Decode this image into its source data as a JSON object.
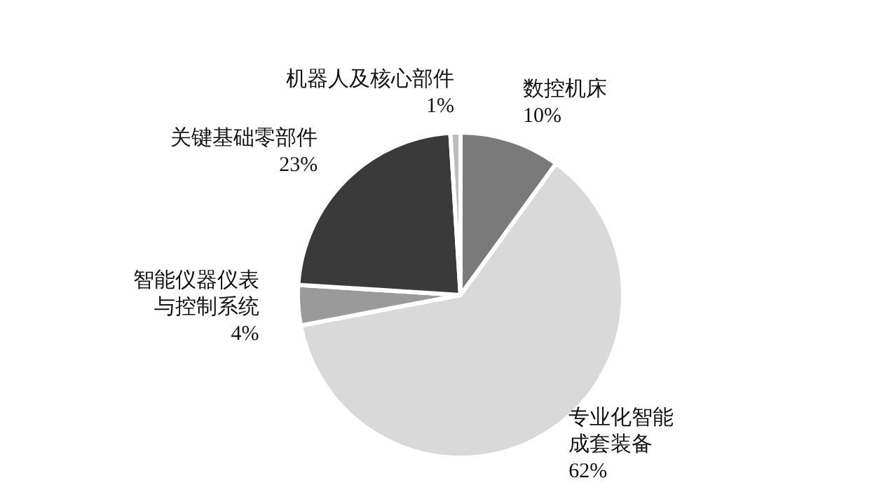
{
  "chart_data": {
    "type": "pie",
    "categories": [
      "数控机床",
      "专业化智能成套装备",
      "智能仪器仪表与控制系统",
      "关键基础零部件",
      "机器人及核心部件"
    ],
    "values": [
      10,
      62,
      4,
      23,
      1
    ],
    "value_labels": [
      "10%",
      "62%",
      "4%",
      "23%",
      "1%"
    ],
    "colors": [
      "#7a7a7a",
      "#d9d9d9",
      "#9a9a9a",
      "#3a3a3a",
      "#bdbdbd"
    ],
    "legend": false
  }
}
